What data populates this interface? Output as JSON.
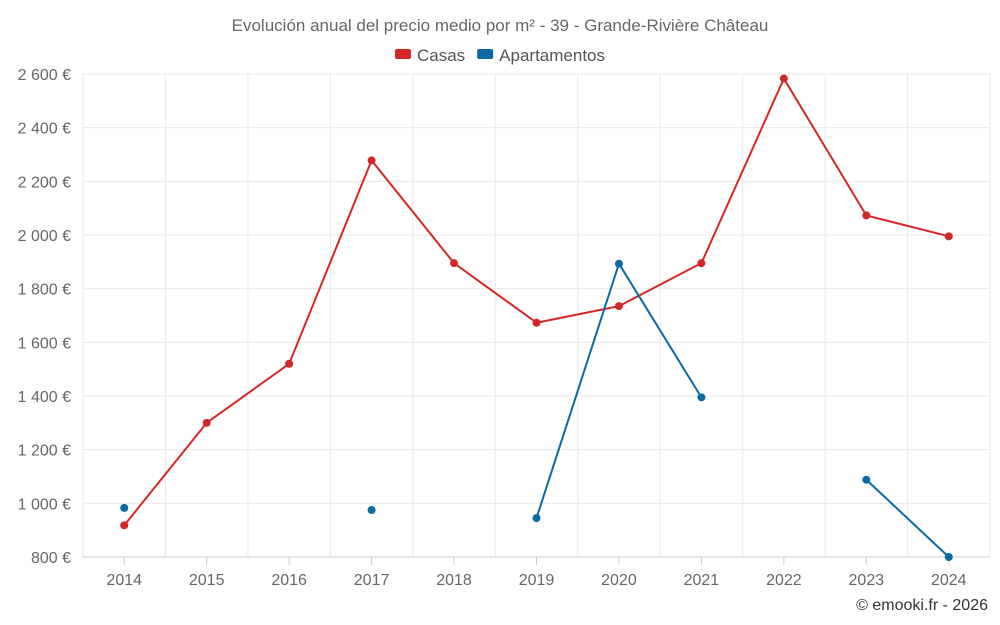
{
  "chart_data": {
    "type": "line",
    "title": "Evolución anual del precio medio por m² - 39 - Grande-Rivière Château",
    "categories": [
      "2014",
      "2015",
      "2016",
      "2017",
      "2018",
      "2019",
      "2020",
      "2021",
      "2022",
      "2023",
      "2024"
    ],
    "ylim": [
      800,
      2600
    ],
    "y_ticks": [
      800,
      1000,
      1200,
      1400,
      1600,
      1800,
      2000,
      2200,
      2400,
      2600
    ],
    "y_tick_labels": [
      "800 €",
      "1 000 €",
      "1 200 €",
      "1 400 €",
      "1 600 €",
      "1 800 €",
      "2 000 €",
      "2 200 €",
      "2 400 €",
      "2 600 €"
    ],
    "grid": true,
    "legend_position": "top-center",
    "series": [
      {
        "name": "Casas",
        "color": "#d62728",
        "values": [
          918,
          1300,
          1520,
          2278,
          1895,
          1673,
          1735,
          1895,
          2583,
          2073,
          1995
        ]
      },
      {
        "name": "Apartamentos",
        "color": "#0b6aa2",
        "values": [
          983,
          null,
          null,
          975,
          null,
          945,
          1893,
          1395,
          null,
          1088,
          800
        ]
      }
    ],
    "credit": "© emooki.fr - 2026"
  }
}
